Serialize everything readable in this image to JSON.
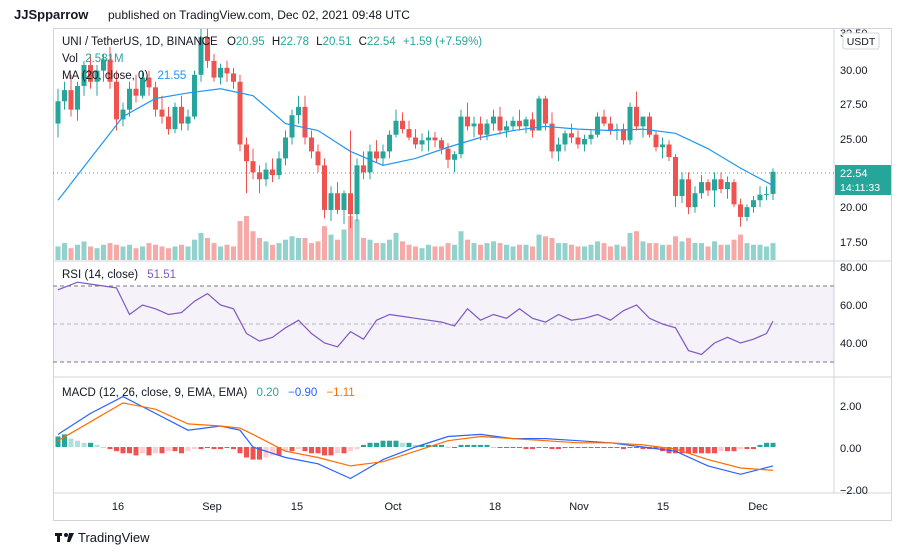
{
  "header": {
    "username": "JJSpparrow",
    "published": "published on TradingView.com, Dec 02, 2021 09:48 UTC"
  },
  "footer": {
    "brand": "TradingView"
  },
  "main_legend": {
    "symbol": "UNI / TetherUS, 1D, BINANCE",
    "o_label": "O",
    "o_value": "20.95",
    "h_label": "H",
    "h_value": "22.78",
    "l_label": "L",
    "l_value": "20.51",
    "c_label": "C",
    "c_value": "22.54",
    "change": "+1.59 (+7.59%)",
    "vol_label": "Vol",
    "vol_value": "2.581M",
    "ma_label": "MA (20, close, 0)",
    "ma_value": "21.55"
  },
  "currency": "USDT",
  "price_axis": {
    "ticks": [
      "32.50",
      "30.00",
      "27.50",
      "25.00",
      "20.00",
      "17.50"
    ],
    "last_price": "22.54",
    "countdown": "14:11:33"
  },
  "rsi_legend": {
    "label": "RSI (14, close)",
    "value": "51.51"
  },
  "rsi_axis": {
    "ticks": [
      "80.00",
      "60.00",
      "40.00"
    ]
  },
  "macd_legend": {
    "label": "MACD (12, 26, close, 9, EMA, EMA)",
    "v1": "0.20",
    "v2": "−0.90",
    "v3": "−1.11"
  },
  "macd_axis": {
    "ticks": [
      "2.00",
      "0.00",
      "−2.00"
    ]
  },
  "time_axis": [
    "16",
    "Sep",
    "15",
    "Oct",
    "18",
    "Nov",
    "15",
    "Dec"
  ],
  "colors": {
    "up": "#26a69a",
    "down": "#ef5350",
    "ma": "#2196f3",
    "rsi": "#7e57c2",
    "macd": "#2962ff",
    "signal": "#ff6d00"
  },
  "chart_data": {
    "type": "candlestick",
    "price_range": [
      16.8,
      32.5
    ],
    "candles": [
      [
        26.0,
        28.5,
        25.0,
        27.6
      ],
      [
        27.6,
        29.0,
        27.0,
        28.4
      ],
      [
        28.4,
        29.5,
        26.5,
        27.0
      ],
      [
        27.0,
        29.0,
        26.2,
        28.7
      ],
      [
        28.7,
        30.5,
        28.0,
        30.2
      ],
      [
        30.2,
        31.0,
        28.5,
        29.0
      ],
      [
        29.0,
        30.2,
        28.0,
        29.8
      ],
      [
        29.8,
        31.0,
        29.0,
        30.6
      ],
      [
        30.6,
        31.5,
        28.5,
        29.0
      ],
      [
        29.0,
        29.8,
        25.5,
        26.3
      ],
      [
        26.3,
        27.5,
        25.8,
        27.0
      ],
      [
        27.0,
        29.0,
        26.5,
        28.5
      ],
      [
        28.5,
        29.5,
        27.5,
        28.0
      ],
      [
        28.0,
        29.8,
        27.8,
        29.3
      ],
      [
        29.3,
        29.8,
        28.0,
        28.6
      ],
      [
        28.6,
        29.0,
        26.5,
        27.0
      ],
      [
        27.0,
        28.0,
        26.0,
        26.5
      ],
      [
        26.5,
        27.2,
        25.2,
        25.6
      ],
      [
        25.6,
        27.5,
        25.3,
        27.2
      ],
      [
        27.2,
        28.0,
        25.5,
        26.0
      ],
      [
        26.0,
        27.0,
        25.5,
        26.5
      ],
      [
        26.5,
        29.8,
        26.3,
        29.5
      ],
      [
        29.5,
        32.8,
        29.0,
        32.2
      ],
      [
        32.2,
        32.8,
        30.0,
        30.5
      ],
      [
        30.5,
        31.0,
        29.0,
        29.3
      ],
      [
        29.3,
        30.3,
        28.8,
        30.0
      ],
      [
        30.0,
        30.5,
        29.0,
        29.6
      ],
      [
        29.6,
        30.0,
        28.5,
        29.0
      ],
      [
        29.0,
        29.5,
        24.0,
        24.5
      ],
      [
        24.5,
        25.0,
        21.0,
        23.3
      ],
      [
        23.3,
        24.2,
        22.0,
        22.5
      ],
      [
        22.5,
        23.0,
        21.0,
        22.0
      ],
      [
        22.0,
        23.2,
        21.5,
        22.7
      ],
      [
        22.7,
        23.5,
        21.8,
        22.3
      ],
      [
        22.3,
        24.0,
        22.0,
        23.5
      ],
      [
        23.5,
        25.5,
        23.0,
        25.0
      ],
      [
        25.0,
        27.0,
        24.5,
        26.6
      ],
      [
        26.6,
        28.0,
        26.0,
        27.2
      ],
      [
        27.2,
        28.0,
        24.5,
        25.0
      ],
      [
        25.0,
        25.5,
        23.5,
        24.0
      ],
      [
        24.0,
        24.5,
        22.5,
        23.0
      ],
      [
        23.0,
        23.5,
        19.2,
        19.8
      ],
      [
        19.8,
        21.5,
        19.0,
        21.0
      ],
      [
        21.0,
        21.8,
        19.5,
        19.8
      ],
      [
        19.8,
        21.2,
        18.8,
        21.0
      ],
      [
        21.0,
        25.5,
        18.5,
        19.5
      ],
      [
        19.5,
        23.5,
        19.0,
        23.0
      ],
      [
        23.0,
        24.0,
        22.0,
        22.5
      ],
      [
        22.5,
        24.5,
        22.0,
        24.0
      ],
      [
        24.0,
        24.8,
        23.2,
        23.5
      ],
      [
        23.5,
        24.5,
        23.0,
        24.0
      ],
      [
        24.0,
        25.5,
        23.5,
        25.2
      ],
      [
        25.2,
        27.0,
        25.0,
        26.2
      ],
      [
        26.2,
        26.8,
        25.3,
        25.6
      ],
      [
        25.6,
        26.2,
        24.8,
        25.0
      ],
      [
        25.0,
        25.6,
        24.2,
        24.5
      ],
      [
        24.5,
        25.3,
        24.0,
        24.8
      ],
      [
        24.8,
        25.5,
        24.0,
        25.0
      ],
      [
        25.0,
        25.4,
        24.3,
        24.8
      ],
      [
        24.8,
        25.0,
        23.8,
        24.2
      ],
      [
        24.2,
        24.6,
        22.8,
        23.4
      ],
      [
        23.4,
        24.0,
        22.5,
        23.8
      ],
      [
        23.8,
        27.0,
        23.5,
        26.5
      ],
      [
        26.5,
        27.5,
        25.5,
        25.8
      ],
      [
        25.8,
        26.5,
        25.0,
        26.0
      ],
      [
        26.0,
        26.5,
        24.8,
        25.2
      ],
      [
        25.2,
        26.3,
        24.8,
        26.0
      ],
      [
        26.0,
        27.0,
        25.5,
        26.5
      ],
      [
        26.5,
        27.2,
        25.2,
        25.5
      ],
      [
        25.5,
        26.2,
        25.0,
        25.8
      ],
      [
        25.8,
        26.5,
        25.5,
        26.2
      ],
      [
        26.2,
        27.0,
        25.5,
        25.8
      ],
      [
        25.8,
        26.5,
        25.3,
        26.3
      ],
      [
        26.3,
        26.8,
        25.0,
        25.5
      ],
      [
        25.5,
        28.0,
        25.5,
        27.8
      ],
      [
        27.8,
        28.0,
        25.5,
        26.0
      ],
      [
        26.0,
        26.8,
        23.5,
        24.0
      ],
      [
        24.0,
        25.0,
        23.3,
        24.5
      ],
      [
        24.5,
        25.5,
        24.0,
        25.3
      ],
      [
        25.3,
        26.0,
        24.6,
        25.0
      ],
      [
        25.0,
        25.5,
        24.2,
        24.5
      ],
      [
        24.5,
        25.2,
        24.0,
        24.9
      ],
      [
        24.9,
        25.5,
        24.5,
        25.2
      ],
      [
        25.2,
        26.8,
        25.0,
        26.5
      ],
      [
        26.5,
        27.0,
        25.8,
        26.0
      ],
      [
        26.0,
        26.5,
        25.2,
        25.5
      ],
      [
        25.5,
        26.0,
        24.8,
        25.6
      ],
      [
        25.6,
        26.0,
        24.5,
        24.8
      ],
      [
        24.8,
        27.5,
        24.5,
        27.2
      ],
      [
        27.2,
        28.3,
        25.5,
        25.8
      ],
      [
        25.8,
        26.5,
        25.0,
        26.5
      ],
      [
        26.5,
        26.8,
        25.0,
        25.2
      ],
      [
        25.2,
        25.5,
        24.0,
        24.3
      ],
      [
        24.3,
        25.0,
        23.5,
        24.5
      ],
      [
        24.5,
        24.8,
        23.3,
        23.6
      ],
      [
        23.6,
        23.8,
        20.0,
        20.8
      ],
      [
        20.8,
        22.5,
        20.3,
        22.0
      ],
      [
        22.0,
        22.5,
        19.5,
        20.0
      ],
      [
        20.0,
        21.5,
        19.6,
        21.0
      ],
      [
        21.0,
        22.3,
        20.6,
        21.8
      ],
      [
        21.8,
        22.0,
        20.8,
        21.2
      ],
      [
        21.2,
        22.5,
        20.0,
        22.0
      ],
      [
        22.0,
        22.5,
        21.0,
        21.3
      ],
      [
        21.3,
        22.2,
        20.6,
        21.8
      ],
      [
        21.8,
        22.0,
        20.0,
        20.2
      ],
      [
        20.2,
        20.6,
        18.6,
        19.3
      ],
      [
        19.3,
        20.2,
        19.0,
        20.0
      ],
      [
        20.0,
        20.8,
        19.6,
        20.5
      ],
      [
        20.5,
        21.5,
        20.0,
        20.9
      ],
      [
        20.9,
        21.5,
        20.5,
        20.95
      ],
      [
        20.95,
        22.78,
        20.51,
        22.54
      ]
    ],
    "ma20": [
      [
        0,
        20.5
      ],
      [
        5,
        23.5
      ],
      [
        10,
        26.5
      ],
      [
        15,
        27.8
      ],
      [
        20,
        28.2
      ],
      [
        25,
        28.5
      ],
      [
        30,
        28.0
      ],
      [
        35,
        26.0
      ],
      [
        40,
        25.5
      ],
      [
        45,
        24.0
      ],
      [
        50,
        23.0
      ],
      [
        55,
        23.5
      ],
      [
        60,
        24.3
      ],
      [
        65,
        25.0
      ],
      [
        70,
        25.5
      ],
      [
        75,
        25.8
      ],
      [
        80,
        25.6
      ],
      [
        85,
        25.5
      ],
      [
        90,
        25.6
      ],
      [
        95,
        25.3
      ],
      [
        100,
        24.2
      ],
      [
        105,
        22.8
      ],
      [
        110,
        21.55
      ]
    ],
    "volume": [
      0.8,
      1.0,
      0.7,
      0.9,
      1.1,
      0.8,
      0.7,
      0.9,
      1.0,
      0.9,
      0.8,
      0.9,
      0.7,
      0.8,
      1.0,
      0.9,
      0.8,
      0.7,
      0.8,
      0.9,
      0.8,
      1.2,
      1.6,
      1.3,
      1.0,
      0.8,
      0.9,
      0.8,
      2.3,
      2.6,
      1.7,
      1.3,
      1.1,
      0.9,
      1.0,
      1.2,
      1.4,
      1.3,
      1.3,
      1.0,
      1.1,
      2.0,
      1.5,
      1.2,
      1.8,
      2.6,
      2.4,
      1.3,
      1.2,
      1.0,
      1.0,
      1.2,
      1.6,
      1.1,
      0.9,
      0.8,
      0.7,
      0.9,
      0.8,
      0.8,
      1.0,
      0.9,
      1.7,
      1.2,
      1.0,
      0.9,
      1.0,
      1.1,
      1.0,
      0.9,
      0.8,
      0.9,
      0.9,
      0.8,
      1.5,
      1.4,
      1.3,
      1.0,
      1.0,
      0.9,
      0.8,
      0.8,
      0.9,
      1.1,
      1.0,
      0.8,
      0.9,
      0.8,
      1.6,
      1.7,
      1.1,
      1.0,
      1.0,
      0.9,
      0.9,
      1.4,
      1.1,
      1.3,
      1.0,
      1.0,
      0.8,
      1.1,
      0.9,
      0.9,
      1.2,
      1.5,
      1.0,
      0.9,
      0.9,
      0.8,
      1.0
    ],
    "rsi": [
      [
        0,
        68
      ],
      [
        3,
        72
      ],
      [
        5,
        71
      ],
      [
        7,
        70
      ],
      [
        9,
        69
      ],
      [
        11,
        55
      ],
      [
        13,
        60
      ],
      [
        15,
        58
      ],
      [
        17,
        55
      ],
      [
        19,
        56
      ],
      [
        21,
        62
      ],
      [
        23,
        66
      ],
      [
        25,
        60
      ],
      [
        27,
        58
      ],
      [
        29,
        45
      ],
      [
        31,
        41
      ],
      [
        33,
        43
      ],
      [
        35,
        48
      ],
      [
        37,
        52
      ],
      [
        39,
        45
      ],
      [
        41,
        40
      ],
      [
        43,
        38
      ],
      [
        45,
        46
      ],
      [
        47,
        42
      ],
      [
        49,
        52
      ],
      [
        51,
        55
      ],
      [
        53,
        54
      ],
      [
        55,
        53
      ],
      [
        57,
        52
      ],
      [
        59,
        51
      ],
      [
        61,
        49
      ],
      [
        63,
        58
      ],
      [
        65,
        52
      ],
      [
        67,
        55
      ],
      [
        69,
        53
      ],
      [
        71,
        58
      ],
      [
        73,
        53
      ],
      [
        75,
        51
      ],
      [
        77,
        55
      ],
      [
        79,
        52
      ],
      [
        81,
        53
      ],
      [
        83,
        55
      ],
      [
        85,
        52
      ],
      [
        87,
        57
      ],
      [
        89,
        60
      ],
      [
        91,
        53
      ],
      [
        93,
        50
      ],
      [
        95,
        48
      ],
      [
        97,
        36
      ],
      [
        99,
        34
      ],
      [
        101,
        40
      ],
      [
        103,
        43
      ],
      [
        105,
        40
      ],
      [
        107,
        42
      ],
      [
        109,
        45
      ],
      [
        110,
        51.51
      ]
    ],
    "macd_range": [
      -2.2,
      2.6
    ],
    "macd_line": [
      [
        0,
        0.6
      ],
      [
        5,
        1.6
      ],
      [
        10,
        2.4
      ],
      [
        15,
        1.6
      ],
      [
        20,
        0.8
      ],
      [
        25,
        1.0
      ],
      [
        28,
        0.8
      ],
      [
        30,
        0
      ],
      [
        35,
        -0.5
      ],
      [
        40,
        -0.8
      ],
      [
        45,
        -1.5
      ],
      [
        50,
        -0.6
      ],
      [
        55,
        0
      ],
      [
        60,
        0.5
      ],
      [
        65,
        0.6
      ],
      [
        70,
        0.4
      ],
      [
        75,
        0.4
      ],
      [
        80,
        0.3
      ],
      [
        85,
        0.2
      ],
      [
        90,
        0
      ],
      [
        95,
        -0.2
      ],
      [
        100,
        -0.9
      ],
      [
        105,
        -1.3
      ],
      [
        110,
        -0.9
      ]
    ],
    "signal_line": [
      [
        0,
        0.3
      ],
      [
        5,
        1.2
      ],
      [
        10,
        2.1
      ],
      [
        15,
        1.8
      ],
      [
        20,
        1.1
      ],
      [
        25,
        1.0
      ],
      [
        28,
        0.9
      ],
      [
        30,
        0.6
      ],
      [
        35,
        -0.2
      ],
      [
        40,
        -0.5
      ],
      [
        45,
        -0.9
      ],
      [
        50,
        -0.7
      ],
      [
        55,
        -0.2
      ],
      [
        60,
        0.3
      ],
      [
        65,
        0.5
      ],
      [
        70,
        0.4
      ],
      [
        75,
        0.3
      ],
      [
        80,
        0.2
      ],
      [
        85,
        0.2
      ],
      [
        90,
        0.1
      ],
      [
        95,
        -0.1
      ],
      [
        100,
        -0.6
      ],
      [
        105,
        -1.0
      ],
      [
        110,
        -1.11
      ]
    ],
    "histogram": [
      0.5,
      0.6,
      0.4,
      0.3,
      0.2,
      0.2,
      0.1,
      0.0,
      -0.1,
      -0.2,
      -0.3,
      -0.3,
      -0.4,
      -0.3,
      -0.4,
      -0.3,
      -0.3,
      -0.2,
      -0.2,
      -0.3,
      -0.2,
      -0.1,
      -0.1,
      0.0,
      -0.1,
      -0.1,
      0.0,
      -0.1,
      -0.3,
      -0.5,
      -0.6,
      -0.6,
      -0.5,
      -0.4,
      -0.4,
      -0.2,
      -0.2,
      -0.1,
      -0.2,
      -0.3,
      -0.3,
      -0.4,
      -0.4,
      -0.3,
      -0.3,
      -0.2,
      -0.1,
      0.1,
      0.2,
      0.2,
      0.3,
      0.3,
      0.3,
      0.2,
      0.2,
      0.1,
      0.1,
      0.1,
      0.1,
      0.1,
      0.0,
      0.0,
      0.1,
      0.1,
      0.1,
      0.1,
      0.1,
      0.0,
      0.0,
      0.0,
      0.0,
      0.0,
      -0.1,
      -0.1,
      0.0,
      0.0,
      -0.1,
      -0.1,
      0.0,
      0.0,
      0.0,
      0.0,
      0.0,
      0.0,
      0.0,
      0.0,
      0.0,
      -0.1,
      0.0,
      0.0,
      -0.1,
      -0.1,
      -0.1,
      -0.2,
      -0.3,
      -0.3,
      -0.3,
      -0.3,
      -0.3,
      -0.3,
      -0.3,
      -0.3,
      -0.2,
      -0.2,
      -0.2,
      -0.1,
      -0.1,
      -0.1,
      0.1,
      0.2,
      0.2
    ]
  }
}
